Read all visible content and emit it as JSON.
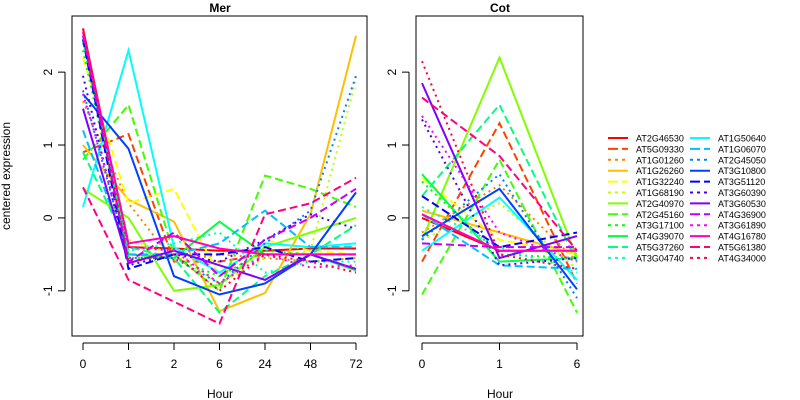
{
  "chart_data": {
    "type": "line",
    "ylabel": "centered expression",
    "ylim": [
      -1.62,
      2.77
    ],
    "yticks": [
      -1,
      0,
      1,
      2
    ],
    "grid": false,
    "legend_placement": "right",
    "legend_columns": 2,
    "panels": [
      {
        "title": "Mer",
        "xlabel": "Hour",
        "categories": [
          "0",
          "1",
          "2",
          "6",
          "24",
          "48",
          "72"
        ]
      },
      {
        "title": "Cot",
        "xlabel": "Hour",
        "categories": [
          "0",
          "1",
          "6"
        ]
      }
    ],
    "series": [
      {
        "name": "AT2G46530",
        "color": "#FF0000",
        "linetype": "solid",
        "Mer": [
          2.6,
          -0.4,
          -0.42,
          -0.45,
          -0.45,
          -0.42,
          -0.42
        ],
        "Cot": [
          0.0,
          -0.45,
          -0.45
        ]
      },
      {
        "name": "AT5G09330",
        "color": "#FF4000",
        "linetype": "dashed",
        "Mer": [
          0.9,
          1.15,
          -0.6,
          -0.6,
          -0.5,
          -0.5,
          -0.5
        ],
        "Cot": [
          -0.6,
          1.3,
          -0.9
        ]
      },
      {
        "name": "AT1G01260",
        "color": "#FF8000",
        "linetype": "dotted",
        "Mer": [
          1.6,
          0.2,
          -0.6,
          -0.5,
          -0.55,
          -0.6,
          -0.55
        ],
        "Cot": [
          -0.2,
          0.45,
          -0.6
        ]
      },
      {
        "name": "AT1G26260",
        "color": "#FFBF00",
        "linetype": "solid",
        "Mer": [
          1.0,
          0.25,
          -0.05,
          -1.28,
          -1.03,
          0.05,
          2.5
        ],
        "Cot": [
          0.1,
          -0.2,
          -0.5
        ]
      },
      {
        "name": "AT1G32240",
        "color": "#FFFF00",
        "linetype": "dashed",
        "Mer": [
          2.2,
          0.2,
          0.4,
          -0.8,
          -0.3,
          -0.45,
          -0.5
        ],
        "Cot": [
          0.55,
          -0.3,
          -0.5
        ]
      },
      {
        "name": "AT1G68190",
        "color": "#BFFF00",
        "linetype": "dotted",
        "Mer": [
          2.5,
          -0.3,
          -0.5,
          -0.9,
          -0.55,
          -0.45,
          1.9
        ],
        "Cot": [
          -0.3,
          0.2,
          -0.7
        ]
      },
      {
        "name": "AT2G40970",
        "color": "#80FF00",
        "linetype": "solid",
        "Mer": [
          0.4,
          0.0,
          -1.0,
          -0.92,
          -0.4,
          -0.2,
          0.0
        ],
        "Cot": [
          -0.3,
          2.2,
          -0.55
        ]
      },
      {
        "name": "AT2G45160",
        "color": "#40FF00",
        "linetype": "dashed",
        "Mer": [
          0.8,
          1.55,
          -0.5,
          -1.0,
          0.58,
          0.4,
          0.15
        ],
        "Cot": [
          -1.05,
          0.8,
          -1.3
        ]
      },
      {
        "name": "AT3G17100",
        "color": "#00FF00",
        "linetype": "dotted",
        "Mer": [
          2.3,
          -0.55,
          -0.55,
          -0.8,
          -0.45,
          -0.5,
          -0.7
        ],
        "Cot": [
          0.5,
          -0.5,
          -0.55
        ]
      },
      {
        "name": "AT4G39070",
        "color": "#00FF40",
        "linetype": "solid",
        "Mer": [
          2.45,
          -0.5,
          -0.55,
          -0.05,
          -0.5,
          -0.5,
          -0.72
        ],
        "Cot": [
          0.6,
          -0.6,
          -0.55
        ]
      },
      {
        "name": "AT5G37260",
        "color": "#00FF80",
        "linetype": "dashed",
        "Mer": [
          0.9,
          -0.4,
          -0.55,
          -1.3,
          -0.8,
          -0.5,
          -0.1
        ],
        "Cot": [
          0.3,
          1.55,
          -0.6
        ]
      },
      {
        "name": "AT3G04740",
        "color": "#00FFBF",
        "linetype": "dotted",
        "Mer": [
          2.4,
          -0.45,
          -0.35,
          -0.2,
          -0.75,
          -0.6,
          -0.6
        ],
        "Cot": [
          0.15,
          -0.4,
          -0.75
        ]
      },
      {
        "name": "AT1G50640",
        "color": "#00FFFF",
        "linetype": "solid",
        "Mer": [
          0.15,
          2.3,
          -0.4,
          -0.75,
          -0.35,
          -0.4,
          -0.35
        ],
        "Cot": [
          -0.45,
          0.28,
          -0.85
        ]
      },
      {
        "name": "AT1G06070",
        "color": "#00BFFF",
        "linetype": "dashed",
        "Mer": [
          1.2,
          -0.5,
          -0.5,
          -0.35,
          0.1,
          -0.4,
          -0.4
        ],
        "Cot": [
          0.05,
          -0.65,
          -0.7
        ]
      },
      {
        "name": "AT2G45050",
        "color": "#0080FF",
        "linetype": "dotted",
        "Mer": [
          1.75,
          -0.55,
          -0.55,
          -0.9,
          -0.35,
          0.1,
          1.95
        ],
        "Cot": [
          -0.3,
          0.6,
          -1.1
        ]
      },
      {
        "name": "AT3G10800",
        "color": "#0040FF",
        "linetype": "solid",
        "Mer": [
          1.7,
          0.95,
          -0.8,
          -1.05,
          -0.9,
          -0.5,
          0.35
        ],
        "Cot": [
          -0.25,
          0.4,
          -0.98
        ]
      },
      {
        "name": "AT3G51120",
        "color": "#0000FF",
        "linetype": "dashed",
        "Mer": [
          2.45,
          -0.7,
          -0.5,
          -0.5,
          -0.4,
          -0.6,
          -0.55
        ],
        "Cot": [
          0.3,
          -0.4,
          -0.2
        ]
      },
      {
        "name": "AT3G60390",
        "color": "#4000FF",
        "linetype": "dotted",
        "Mer": [
          1.95,
          -0.65,
          -0.5,
          -0.6,
          -0.3,
          0.05,
          -0.15
        ],
        "Cot": [
          1.35,
          -0.65,
          -0.55
        ]
      },
      {
        "name": "AT3G60530",
        "color": "#8000FF",
        "linetype": "solid",
        "Mer": [
          1.5,
          -0.62,
          -0.45,
          -0.65,
          -0.85,
          -0.5,
          -0.7
        ],
        "Cot": [
          1.85,
          -0.55,
          -0.25
        ]
      },
      {
        "name": "AT4G36900",
        "color": "#BF00FF",
        "linetype": "dashed",
        "Mer": [
          2.5,
          -0.6,
          -0.2,
          -0.8,
          -0.3,
          0.0,
          0.4
        ],
        "Cot": [
          -0.35,
          -0.4,
          -0.4
        ]
      },
      {
        "name": "AT3G61890",
        "color": "#FF00FF",
        "linetype": "dotted",
        "Mer": [
          1.7,
          -0.4,
          -0.45,
          -0.9,
          -0.5,
          -0.68,
          -0.65
        ],
        "Cot": [
          1.4,
          -0.2,
          -0.6
        ]
      },
      {
        "name": "AT4G16780",
        "color": "#FF00BF",
        "linetype": "solid",
        "Mer": [
          2.55,
          -0.35,
          -0.25,
          -0.42,
          -0.5,
          -0.5,
          -0.5
        ],
        "Cot": [
          0.05,
          -0.45,
          -0.45
        ]
      },
      {
        "name": "AT5G61380",
        "color": "#FF0080",
        "linetype": "dashed",
        "Mer": [
          0.42,
          -0.85,
          -1.15,
          -1.45,
          0.05,
          0.2,
          0.55
        ],
        "Cot": [
          1.65,
          0.85,
          -0.45
        ]
      },
      {
        "name": "AT4G34000",
        "color": "#FF0040",
        "linetype": "dotted",
        "Mer": [
          2.6,
          -0.6,
          -0.5,
          -1.0,
          -0.5,
          -0.6,
          -0.75
        ],
        "Cot": [
          2.15,
          -0.5,
          -0.7
        ]
      }
    ]
  }
}
